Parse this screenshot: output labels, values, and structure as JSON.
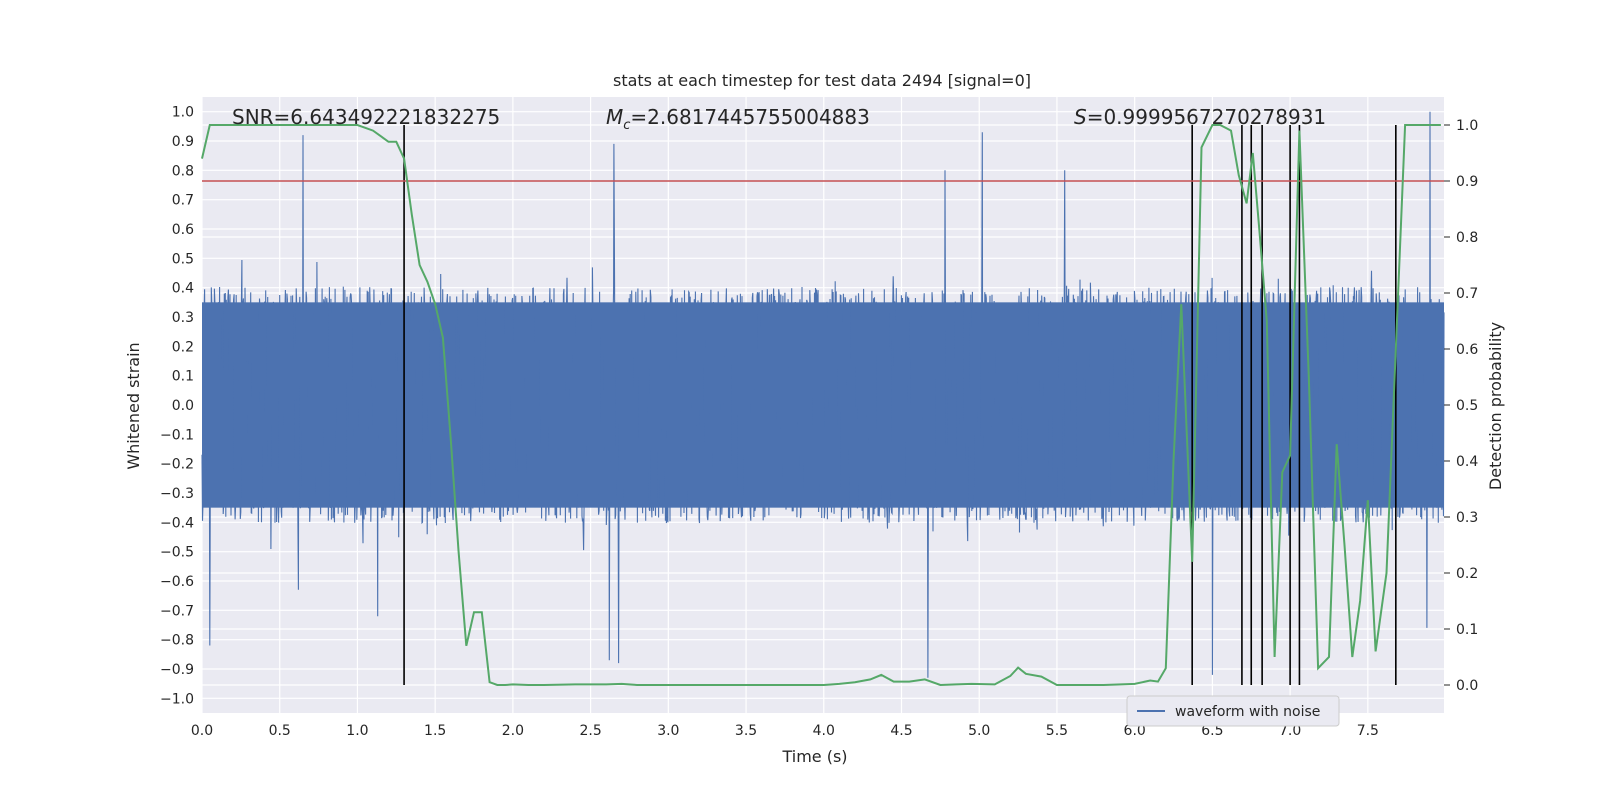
{
  "chart_data": {
    "type": "line",
    "title": "stats at each timestep for test data 2494 [signal=0]",
    "xlabel": "Time (s)",
    "ylabel": "Whitened strain",
    "ylabel_right": "Detection probability",
    "xlim": [
      0.0,
      7.99
    ],
    "ylim": [
      -1.05,
      1.05
    ],
    "ylim_right": [
      -0.05,
      1.05
    ],
    "x_ticks": [
      "0.0",
      "0.5",
      "1.0",
      "1.5",
      "2.0",
      "2.5",
      "3.0",
      "3.5",
      "4.0",
      "4.5",
      "5.0",
      "5.5",
      "6.0",
      "6.5",
      "7.0",
      "7.5"
    ],
    "y_ticks": [
      "−1.0",
      "−0.9",
      "−0.8",
      "−0.7",
      "−0.6",
      "−0.5",
      "−0.4",
      "−0.3",
      "−0.2",
      "−0.1",
      "0.0",
      "0.1",
      "0.2",
      "0.3",
      "0.4",
      "0.5",
      "0.6",
      "0.7",
      "0.8",
      "0.9",
      "1.0"
    ],
    "y_ticks_right": [
      "0.0",
      "0.1",
      "0.2",
      "0.3",
      "0.4",
      "0.5",
      "0.6",
      "0.7",
      "0.8",
      "0.9",
      "1.0"
    ],
    "grid": true,
    "legend": {
      "placement": "lower-right",
      "entries": [
        "waveform with noise"
      ]
    },
    "annotations": {
      "snr": "SNR=6.643492221832275",
      "mc_symbol": "M",
      "mc_sub": "c",
      "mc_value": "=2.6817445755004883",
      "s_symbol": "S",
      "s_value": "=0.9999567270278931"
    },
    "threshold_right": 0.9,
    "detection_lines_x": [
      1.3,
      6.37,
      6.69,
      6.75,
      6.82,
      7.0,
      7.06,
      7.68
    ],
    "series": [
      {
        "name": "waveform with noise",
        "axis": "left",
        "envelope": {
          "core_half_width": 0.35,
          "typical_peak": 0.55,
          "max_peaks": [
            {
              "x": 0.05,
              "y": 0.55
            },
            {
              "x": 0.65,
              "y": 0.92
            },
            {
              "x": 0.62,
              "y": -0.63
            },
            {
              "x": 0.05,
              "y": -0.82
            },
            {
              "x": 1.13,
              "y": -0.72
            },
            {
              "x": 2.65,
              "y": 0.89
            },
            {
              "x": 2.62,
              "y": -0.87
            },
            {
              "x": 2.68,
              "y": -0.88
            },
            {
              "x": 4.78,
              "y": 0.8
            },
            {
              "x": 5.02,
              "y": 0.93
            },
            {
              "x": 5.55,
              "y": 0.8
            },
            {
              "x": 4.67,
              "y": -0.93
            },
            {
              "x": 6.5,
              "y": -0.92
            },
            {
              "x": 7.9,
              "y": 1.0
            },
            {
              "x": 7.88,
              "y": -0.76
            }
          ]
        }
      },
      {
        "name": "detection probability",
        "axis": "right",
        "x": [
          0.0,
          0.05,
          0.1,
          0.2,
          0.3,
          0.4,
          0.5,
          0.6,
          0.7,
          0.8,
          0.9,
          1.0,
          1.05,
          1.1,
          1.15,
          1.2,
          1.25,
          1.3,
          1.35,
          1.4,
          1.45,
          1.5,
          1.55,
          1.6,
          1.65,
          1.7,
          1.75,
          1.8,
          1.85,
          1.9,
          1.95,
          2.0,
          2.1,
          2.2,
          2.4,
          2.6,
          2.7,
          2.8,
          3.0,
          3.5,
          4.0,
          4.1,
          4.2,
          4.3,
          4.37,
          4.45,
          4.55,
          4.65,
          4.75,
          4.85,
          4.95,
          5.1,
          5.2,
          5.25,
          5.3,
          5.4,
          5.5,
          5.6,
          5.8,
          6.0,
          6.1,
          6.15,
          6.2,
          6.25,
          6.3,
          6.37,
          6.43,
          6.5,
          6.55,
          6.62,
          6.67,
          6.72,
          6.76,
          6.8,
          6.85,
          6.9,
          6.95,
          7.0,
          7.06,
          7.12,
          7.18,
          7.25,
          7.3,
          7.35,
          7.4,
          7.45,
          7.5,
          7.55,
          7.62,
          7.68,
          7.74,
          7.8,
          7.86,
          7.92,
          7.97
        ],
        "y": [
          0.94,
          1.0,
          1.0,
          1.0,
          1.0,
          1.0,
          1.0,
          1.0,
          1.0,
          1.0,
          1.0,
          1.0,
          0.995,
          0.99,
          0.98,
          0.97,
          0.97,
          0.94,
          0.84,
          0.75,
          0.72,
          0.68,
          0.62,
          0.44,
          0.24,
          0.07,
          0.13,
          0.13,
          0.005,
          0.0,
          0.0,
          0.001,
          0.0,
          0.0,
          0.001,
          0.001,
          0.002,
          0.0,
          0.0,
          0.0,
          0.0,
          0.002,
          0.005,
          0.01,
          0.018,
          0.006,
          0.006,
          0.01,
          0.0,
          0.001,
          0.002,
          0.001,
          0.016,
          0.031,
          0.02,
          0.015,
          0.0,
          0.0,
          0.0,
          0.002,
          0.008,
          0.006,
          0.03,
          0.4,
          0.68,
          0.22,
          0.96,
          1.0,
          1.0,
          0.99,
          0.91,
          0.86,
          0.95,
          0.82,
          0.65,
          0.05,
          0.38,
          0.41,
          0.99,
          0.55,
          0.03,
          0.05,
          0.43,
          0.25,
          0.05,
          0.15,
          0.33,
          0.06,
          0.2,
          0.6,
          1.0,
          1.0,
          1.0,
          1.0,
          1.0
        ]
      }
    ],
    "colors": {
      "background": "#eaeaf2",
      "grid": "#ffffff",
      "waveform": "#4c72b0",
      "probability": "#55a868",
      "threshold": "#c44e52",
      "detection_line": "#000000"
    }
  }
}
